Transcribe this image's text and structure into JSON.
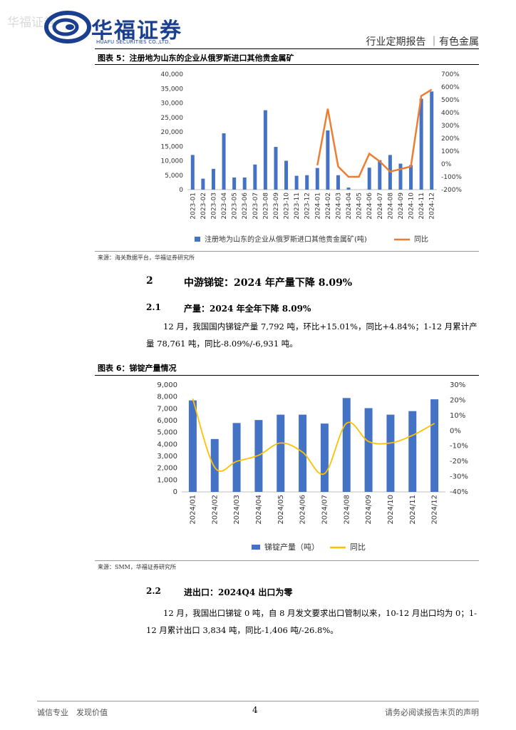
{
  "header": {
    "watermark": "华福证券",
    "logo_cn": "华福证券",
    "logo_en": "HUAFU SECURITIES CO.,LTD.",
    "report_type": "行业定期报告 ｜有色金属"
  },
  "fig5": {
    "title": "图表 5：注册地为山东的企业从俄罗斯进口其他贵金属矿",
    "source": "来源：海关数据平台，华福证券研究所"
  },
  "section2": {
    "num": "2",
    "title": "中游锑锭：2024 年产量下降 8.09%"
  },
  "section21": {
    "num": "2.1",
    "title": "产量：2024 年全年下降 8.09%",
    "para": "12 月，我国国内锑锭产量 7,792 吨，环比+15.01%，同比+4.84%；1-12 月累计产量 78,761 吨，同比-8.09%/-6,931 吨。"
  },
  "fig6": {
    "title": "图表 6：锑锭产量情况",
    "source": "来源：SMM，华福证券研究所"
  },
  "section22": {
    "num": "2.2",
    "title": "进出口：2024Q4 出口为零",
    "para": "12 月，我国出口锑锭 0 吨，自 8 月发文要求出口管制以来，10-12 月出口均为 0；1-12 月累计出口 3,834 吨，同比-1,406 吨/-26.8%。"
  },
  "footer": {
    "left": "诚信专业　发现价值",
    "page": "4",
    "right": "请务必阅读报告末页的声明"
  },
  "colors": {
    "bar": "#4472c4",
    "line5": "#ed7d31",
    "line6": "#ffc000",
    "brand": "#1a3f8f"
  },
  "chart_data": [
    {
      "type": "bar",
      "categories": [
        "2023-01",
        "2023-02",
        "2023-03",
        "2023-04",
        "2023-05",
        "2023-06",
        "2023-07",
        "2023-08",
        "2023-09",
        "2023-10",
        "2023-11",
        "2023-12",
        "2024-01",
        "2024-02",
        "2024-03",
        "2024-04",
        "2024-05",
        "2024-06",
        "2024-07",
        "2024-08",
        "2024-09",
        "2024-10",
        "2024-11",
        "2024-12"
      ],
      "series": [
        {
          "name": "注册地为山东的企业从俄罗斯进口其他贵金属矿(吨)",
          "type": "bar",
          "axis": "left",
          "values": [
            12000,
            3800,
            7200,
            19500,
            4200,
            4200,
            8700,
            27500,
            14800,
            10000,
            4800,
            5000,
            7500,
            20500,
            5000,
            700,
            0,
            7600,
            10200,
            12000,
            9000,
            8500,
            31500,
            34000
          ]
        },
        {
          "name": "同比",
          "type": "line",
          "axis": "right",
          "values": [
            null,
            null,
            null,
            null,
            null,
            null,
            null,
            null,
            null,
            null,
            null,
            null,
            -10,
            430,
            -20,
            -100,
            -100,
            80,
            20,
            -60,
            -40,
            -20,
            530,
            580
          ]
        }
      ],
      "y_left": {
        "min": 0,
        "max": 40000,
        "ticks": [
          "0",
          "5,000",
          "10,000",
          "15,000",
          "20,000",
          "25,000",
          "30,000",
          "35,000",
          "40,000"
        ]
      },
      "y_right": {
        "min": -200,
        "max": 700,
        "ticks": [
          "-200%",
          "-100%",
          "0%",
          "100%",
          "200%",
          "300%",
          "400%",
          "500%",
          "600%",
          "700%"
        ]
      },
      "legend": "bottom"
    },
    {
      "type": "bar",
      "categories": [
        "2024/01",
        "2024/02",
        "2024/03",
        "2024/04",
        "2024/05",
        "2024/06",
        "2024/07",
        "2024/08",
        "2024/09",
        "2024/10",
        "2024/11",
        "2024/12"
      ],
      "series": [
        {
          "name": "锑锭产量（吨）",
          "type": "bar",
          "axis": "left",
          "values": [
            7700,
            4450,
            5800,
            6050,
            6500,
            6500,
            5750,
            7900,
            7050,
            6500,
            6800,
            7792
          ]
        },
        {
          "name": "同比",
          "type": "line",
          "axis": "right",
          "values": [
            21,
            -24,
            -20,
            -16,
            -8,
            -14,
            -28,
            5,
            -7,
            -8,
            -3,
            4.84
          ]
        }
      ],
      "y_left": {
        "min": 0,
        "max": 9000,
        "ticks": [
          "0",
          "1,000",
          "2,000",
          "3,000",
          "4,000",
          "5,000",
          "6,000",
          "7,000",
          "8,000",
          "9,000"
        ]
      },
      "y_right": {
        "min": -40,
        "max": 30,
        "ticks": [
          "-40%",
          "-30%",
          "-20%",
          "-10%",
          "0%",
          "10%",
          "20%",
          "30%"
        ]
      },
      "legend": "bottom"
    }
  ]
}
